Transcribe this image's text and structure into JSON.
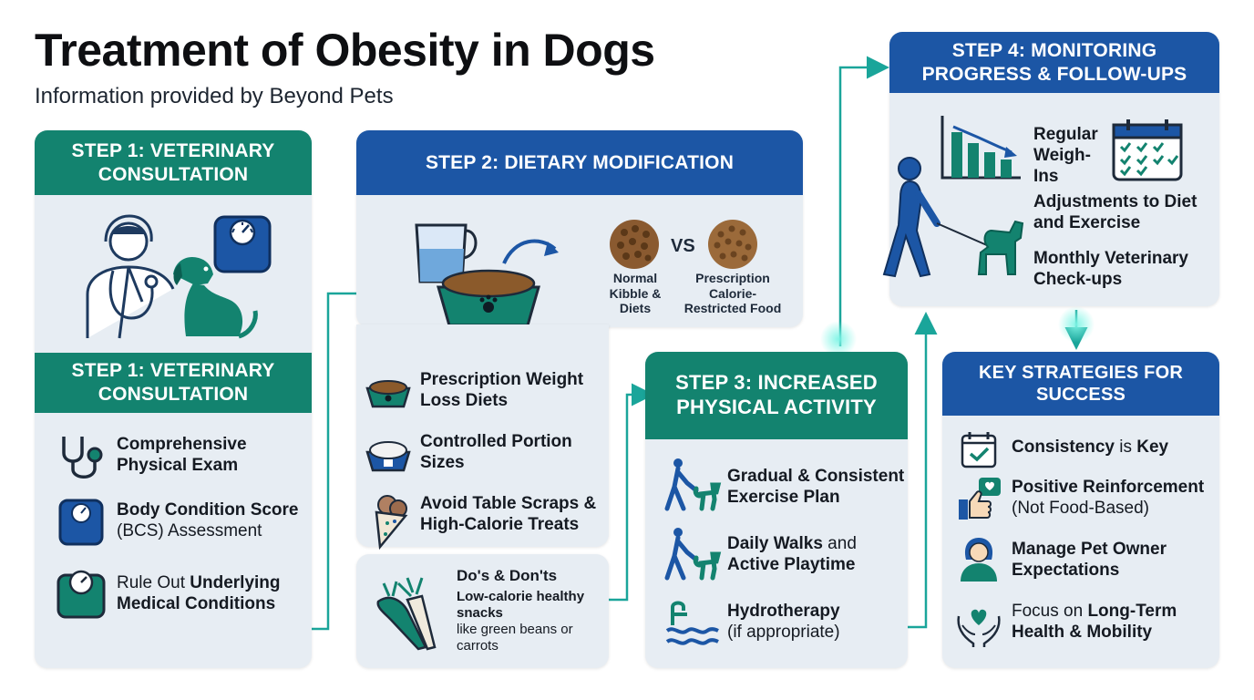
{
  "header": {
    "title": "Treatment of Obesity in Dogs",
    "subtitle": "Information provided by Beyond Pets"
  },
  "step1": {
    "title_top": "STEP 1: VETERINARY CONSULTATION",
    "title_mid": "STEP 1: VETERINARY CONSULTATION",
    "items": [
      {
        "bold": "Comprehensive Physical Exam",
        "normal": "",
        "icon": "stethoscope-icon"
      },
      {
        "bold": "Body Condition Score",
        "normal": "(BCS) Assessment",
        "icon": "scale-icon"
      },
      {
        "normal": "Rule Out ",
        "bold": "Underlying Medical Conditions",
        "icon": "scale-gauge-icon"
      }
    ]
  },
  "step2": {
    "title": "STEP 2: DIETARY MODIFICATION",
    "vs": "VS",
    "normal_label": "Normal Kibble & Diets",
    "prescription_label": "Prescription Calorie-Restricted Food",
    "items": [
      {
        "bold": "Prescription Weight Loss Diets",
        "icon": "food-bowl-icon"
      },
      {
        "bold": "Controlled Portion Sizes",
        "icon": "portion-bowl-icon"
      },
      {
        "bold": "Avoid Table Scraps & High-Calorie Treats",
        "icon": "ice-cream-cone-icon"
      }
    ],
    "dos_title": "Do's & Don'ts",
    "dos_bold": "Low-calorie healthy snacks",
    "dos_normal": "like green beans or carrots"
  },
  "step3": {
    "title": "STEP 3: INCREASED PHYSICAL ACTIVITY",
    "items": [
      {
        "bold": "Gradual & Consistent Exercise Plan",
        "normal": "",
        "icon": "walking-dog-icon"
      },
      {
        "bold": "Daily Walks",
        "normal": " and ",
        "bold2": "Active Playtime",
        "icon": "walking-dog-icon"
      },
      {
        "bold": "Hydrotherapy",
        "normal": "(if appropriate)",
        "icon": "pool-icon"
      }
    ]
  },
  "step4": {
    "title": "STEP 4: MONITORING PROGRESS & FOLLOW-UPS",
    "items": [
      {
        "bold": "Regular Weigh-Ins"
      },
      {
        "bold": "Adjustments to Diet and Exercise"
      },
      {
        "bold": "Monthly Veterinary Check-ups"
      }
    ]
  },
  "strategies": {
    "title": "KEY STRATEGIES FOR SUCCESS",
    "items": [
      {
        "bold": "Consistency",
        "normal": " is ",
        "bold2": "Key",
        "icon": "calendar-check-icon"
      },
      {
        "bold": "Positive Reinforcement",
        "normal": "(Not Food-Based)",
        "icon": "thumbs-up-heart-icon"
      },
      {
        "bold": "Manage Pet Owner Expectations",
        "icon": "person-icon"
      },
      {
        "normal": "Focus on ",
        "bold": "Long-Term Health & Mobility",
        "icon": "hands-heart-icon"
      }
    ]
  },
  "colors": {
    "teal": "#13836f",
    "blue": "#1c56a5",
    "card": "#e7edf3",
    "connector": "#1aa59a"
  }
}
